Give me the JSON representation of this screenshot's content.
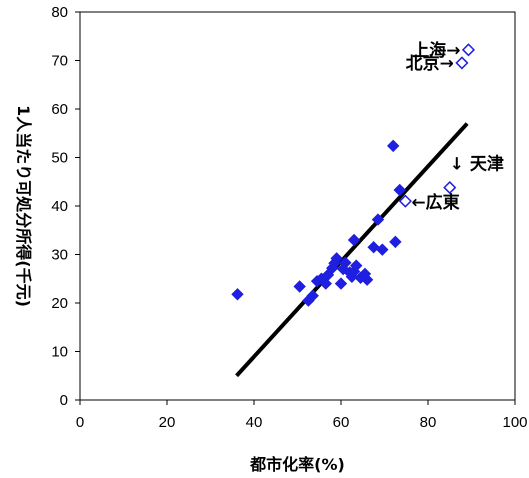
{
  "chart_data": {
    "type": "scatter",
    "title": "",
    "xlabel": "都市化率(%)",
    "ylabel": "1人当たり可処分所得(千元)",
    "xlim": [
      0,
      100
    ],
    "ylim": [
      0,
      80
    ],
    "x_ticks": [
      "0",
      "20",
      "40",
      "60",
      "80",
      "100"
    ],
    "y_ticks": [
      "0",
      "10",
      "20",
      "30",
      "40",
      "50",
      "60",
      "70",
      "80"
    ],
    "grid": false,
    "legend": "none",
    "colors": {
      "points": "#1f1fe0",
      "line": "#000000",
      "open_marker": "#1f1fe0"
    },
    "series": [
      {
        "marker": "filled-diamond",
        "points": [
          [
            36.2,
            21.8
          ],
          [
            50.5,
            23.4
          ],
          [
            52.5,
            20.5
          ],
          [
            53.5,
            21.5
          ],
          [
            54.5,
            24.5
          ],
          [
            55.5,
            25.0
          ],
          [
            56.5,
            24.0
          ],
          [
            57.0,
            25.8
          ],
          [
            58.0,
            27.2
          ],
          [
            58.5,
            28.2
          ],
          [
            59.0,
            29.2
          ],
          [
            60.0,
            24.0
          ],
          [
            60.5,
            27.0
          ],
          [
            61.0,
            28.3
          ],
          [
            62.0,
            26.3
          ],
          [
            62.5,
            25.4
          ],
          [
            63.0,
            26.5
          ],
          [
            63.0,
            33.0
          ],
          [
            63.5,
            27.7
          ],
          [
            64.5,
            25.2
          ],
          [
            65.5,
            26.0
          ],
          [
            66.0,
            24.8
          ],
          [
            67.5,
            31.5
          ],
          [
            68.5,
            37.2
          ],
          [
            69.5,
            31.0
          ],
          [
            72.0,
            52.4
          ],
          [
            72.5,
            32.6
          ],
          [
            73.5,
            43.3
          ]
        ]
      },
      {
        "marker": "open-diamond",
        "points": [
          [
            89.3,
            72.2
          ],
          [
            87.8,
            69.5
          ],
          [
            85.0,
            43.8
          ],
          [
            74.8,
            41.0
          ]
        ]
      }
    ],
    "trend_line": {
      "x": [
        36,
        89
      ],
      "y": [
        5.0,
        57.0
      ]
    },
    "annotations": [
      {
        "text": "上海→",
        "x": 89.3,
        "y": 72.2,
        "anchor": "end",
        "dx": -8,
        "dy": 6
      },
      {
        "text": "北京→",
        "x": 87.8,
        "y": 69.5,
        "anchor": "end",
        "dx": -8,
        "dy": 6
      },
      {
        "text": "↓ 天津",
        "x": 85.0,
        "y": 43.8,
        "anchor": "start",
        "dx": 0,
        "dy": -18
      },
      {
        "text": "←広東",
        "x": 74.8,
        "y": 41.0,
        "anchor": "start",
        "dx": 6,
        "dy": 7
      }
    ]
  }
}
